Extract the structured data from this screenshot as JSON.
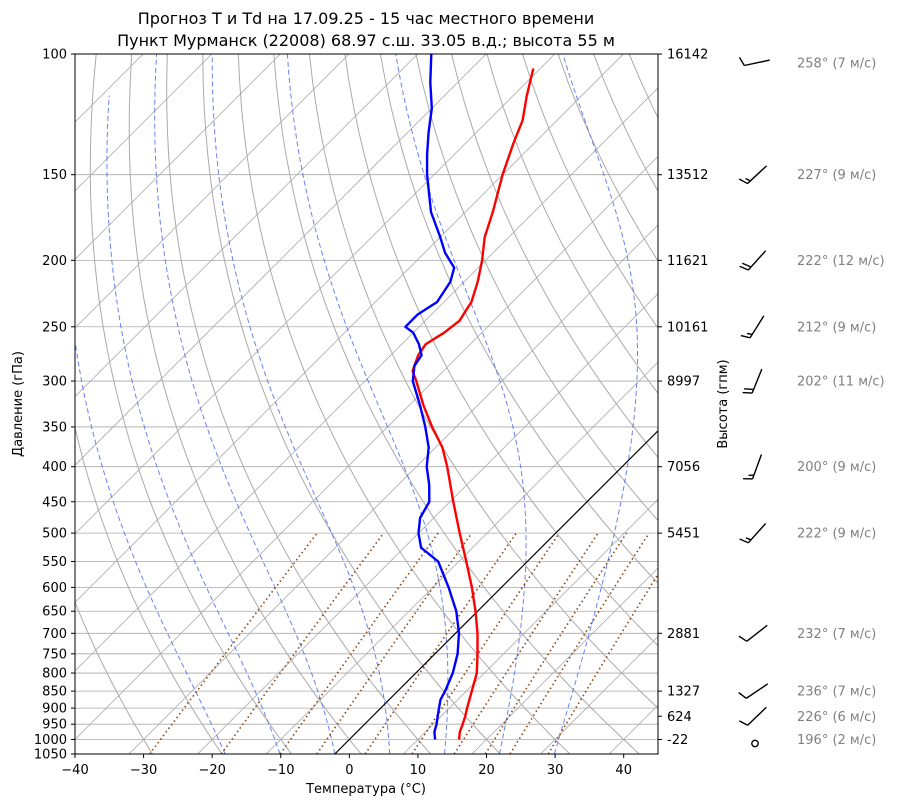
{
  "chart_data": {
    "type": "line",
    "title": "Прогноз T и Td на 17.09.25 - 15 час местного времени",
    "subtitle": "Пункт Мурманск (22008) 68.97 с.ш. 33.05 в.д.; высота 55 м",
    "xlabel": "Температура (°C)",
    "ylabel": "Давление (гПа)",
    "ylabel_right": "Высота (гпм)",
    "xlim": [
      -40,
      45
    ],
    "ylim": [
      1050,
      100
    ],
    "yscale": "log",
    "grid": true,
    "skew": true,
    "x_ticks": [
      "−40",
      "−30",
      "−20",
      "−10",
      "0",
      "10",
      "20",
      "30",
      "40"
    ],
    "y_ticks": [
      "100",
      "150",
      "200",
      "250",
      "300",
      "350",
      "400",
      "450",
      "500",
      "550",
      "600",
      "650",
      "700",
      "750",
      "800",
      "850",
      "900",
      "950",
      "1000",
      "1050"
    ],
    "heights": [
      {
        "p": 100,
        "label": "16142"
      },
      {
        "p": 150,
        "label": "13512"
      },
      {
        "p": 200,
        "label": "11621"
      },
      {
        "p": 250,
        "label": "10161"
      },
      {
        "p": 300,
        "label": "8997"
      },
      {
        "p": 400,
        "label": "7056"
      },
      {
        "p": 500,
        "label": "5451"
      },
      {
        "p": 700,
        "label": "2881"
      },
      {
        "p": 850,
        "label": "1327"
      },
      {
        "p": 925,
        "label": "624"
      },
      {
        "p": 1000,
        "label": "-22"
      }
    ],
    "series": [
      {
        "color": "#ff0000",
        "points": [
          [
            1000,
            16.0
          ],
          [
            975,
            15.0
          ],
          [
            950,
            14.3
          ],
          [
            925,
            13.5
          ],
          [
            900,
            12.6
          ],
          [
            875,
            11.7
          ],
          [
            850,
            10.8
          ],
          [
            800,
            8.9
          ],
          [
            750,
            6.2
          ],
          [
            700,
            3.2
          ],
          [
            650,
            -0.3
          ],
          [
            600,
            -4.3
          ],
          [
            550,
            -8.9
          ],
          [
            500,
            -14.0
          ],
          [
            450,
            -19.5
          ],
          [
            400,
            -25.5
          ],
          [
            375,
            -29.0
          ],
          [
            350,
            -33.5
          ],
          [
            325,
            -38.0
          ],
          [
            300,
            -42.5
          ],
          [
            290,
            -44.5
          ],
          [
            275,
            -46.0
          ],
          [
            265,
            -46.5
          ],
          [
            255,
            -45.5
          ],
          [
            245,
            -45.0
          ],
          [
            230,
            -46.0
          ],
          [
            215,
            -48.0
          ],
          [
            200,
            -50.5
          ],
          [
            185,
            -53.5
          ],
          [
            170,
            -56.0
          ],
          [
            150,
            -60.0
          ],
          [
            135,
            -63.0
          ],
          [
            125,
            -65.0
          ],
          [
            115,
            -68.0
          ],
          [
            105,
            -71.0
          ]
        ]
      },
      {
        "color": "#0000ff",
        "points": [
          [
            1000,
            12.5
          ],
          [
            975,
            11.3
          ],
          [
            950,
            10.5
          ],
          [
            925,
            9.5
          ],
          [
            900,
            8.5
          ],
          [
            875,
            7.5
          ],
          [
            850,
            6.9
          ],
          [
            800,
            5.4
          ],
          [
            750,
            3.3
          ],
          [
            700,
            0.5
          ],
          [
            650,
            -3.1
          ],
          [
            600,
            -7.7
          ],
          [
            550,
            -13.0
          ],
          [
            525,
            -17.5
          ],
          [
            500,
            -20.0
          ],
          [
            475,
            -22.0
          ],
          [
            450,
            -23.0
          ],
          [
            425,
            -25.5
          ],
          [
            400,
            -28.5
          ],
          [
            375,
            -31.0
          ],
          [
            350,
            -34.5
          ],
          [
            325,
            -38.5
          ],
          [
            300,
            -43.0
          ],
          [
            285,
            -45.0
          ],
          [
            275,
            -45.5
          ],
          [
            265,
            -47.5
          ],
          [
            255,
            -50.0
          ],
          [
            250,
            -52.0
          ],
          [
            240,
            -52.0
          ],
          [
            230,
            -51.0
          ],
          [
            215,
            -52.0
          ],
          [
            205,
            -53.5
          ],
          [
            195,
            -57.0
          ],
          [
            185,
            -60.0
          ],
          [
            170,
            -65.0
          ],
          [
            150,
            -71.0
          ],
          [
            140,
            -74.0
          ],
          [
            130,
            -77.0
          ],
          [
            120,
            -80.0
          ],
          [
            110,
            -84.0
          ],
          [
            100,
            -88.0
          ]
        ]
      }
    ],
    "parcel_line_color": "#000000",
    "winds": [
      {
        "p": 103,
        "dir": 258,
        "speed": 7,
        "label": "258° (7 м/с)"
      },
      {
        "p": 150,
        "dir": 227,
        "speed": 9,
        "label": "227° (9 м/с)"
      },
      {
        "p": 200,
        "dir": 222,
        "speed": 12,
        "label": "222° (12 м/с)"
      },
      {
        "p": 250,
        "dir": 212,
        "speed": 9,
        "label": "212° (9 м/с)"
      },
      {
        "p": 300,
        "dir": 202,
        "speed": 11,
        "label": "202° (11 м/с)"
      },
      {
        "p": 400,
        "dir": 200,
        "speed": 9,
        "label": "200° (9 м/с)"
      },
      {
        "p": 500,
        "dir": 222,
        "speed": 9,
        "label": "222° (9 м/с)"
      },
      {
        "p": 700,
        "dir": 232,
        "speed": 7,
        "label": "232° (7 м/с)"
      },
      {
        "p": 850,
        "dir": 236,
        "speed": 7,
        "label": "236° (7 м/с)"
      },
      {
        "p": 925,
        "dir": 226,
        "speed": 6,
        "label": "226° (6 м/с)"
      },
      {
        "p": 1000,
        "dir": 196,
        "speed": 2,
        "label": "196° (2 м/с)"
      }
    ],
    "colors": {
      "temperature": "#ff0000",
      "dewpoint": "#0000ff",
      "dry_adiabat": "#aaaaaa",
      "moist_adiabat": "#4d6cf0",
      "mixing_ratio": "#8b4513",
      "isotherm": "#aaaaaa",
      "isobar": "#aaaaaa",
      "wind_label": "#808080"
    }
  }
}
